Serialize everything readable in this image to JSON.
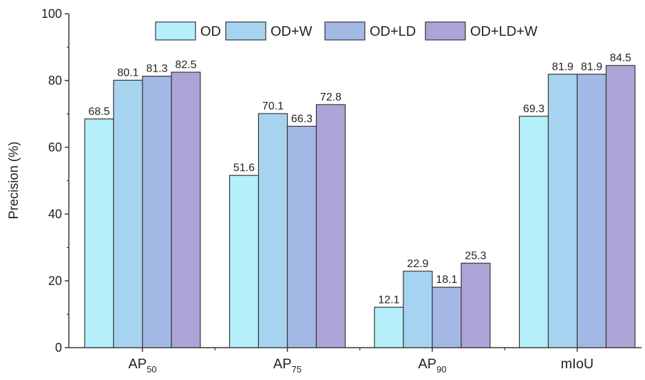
{
  "chart_data": {
    "type": "bar",
    "categories": [
      {
        "base": "AP",
        "sub": "50"
      },
      {
        "base": "AP",
        "sub": "75"
      },
      {
        "base": "AP",
        "sub": "90"
      },
      {
        "base": "mIoU",
        "sub": ""
      }
    ],
    "series": [
      {
        "name": "OD",
        "color": "#b4effa",
        "values": [
          68.5,
          51.6,
          12.1,
          69.3
        ]
      },
      {
        "name": "OD+W",
        "color": "#a6d4f0",
        "values": [
          80.1,
          70.1,
          22.9,
          81.9
        ]
      },
      {
        "name": "OD+LD",
        "color": "#a4b8e6",
        "values": [
          81.3,
          66.3,
          18.1,
          81.9
        ]
      },
      {
        "name": "OD+LD+W",
        "color": "#aea3d6",
        "values": [
          82.5,
          72.8,
          25.3,
          84.5
        ]
      }
    ],
    "data_labels": [
      [
        "68.5",
        "51.6",
        "12.1",
        "69.3"
      ],
      [
        "80.1",
        "70.1",
        "22.9",
        "81.9"
      ],
      [
        "81.3",
        "66.3",
        "18.1",
        "81.9"
      ],
      [
        "82.5",
        "72.8",
        "25.3",
        "84.5"
      ]
    ],
    "ylabel": "Precision (%)",
    "xlabel": "",
    "ylim": [
      0,
      100
    ],
    "yticks": [
      0,
      20,
      40,
      60,
      80,
      100
    ],
    "grid": false,
    "legend_position": "top",
    "edge_color": "#333333"
  }
}
